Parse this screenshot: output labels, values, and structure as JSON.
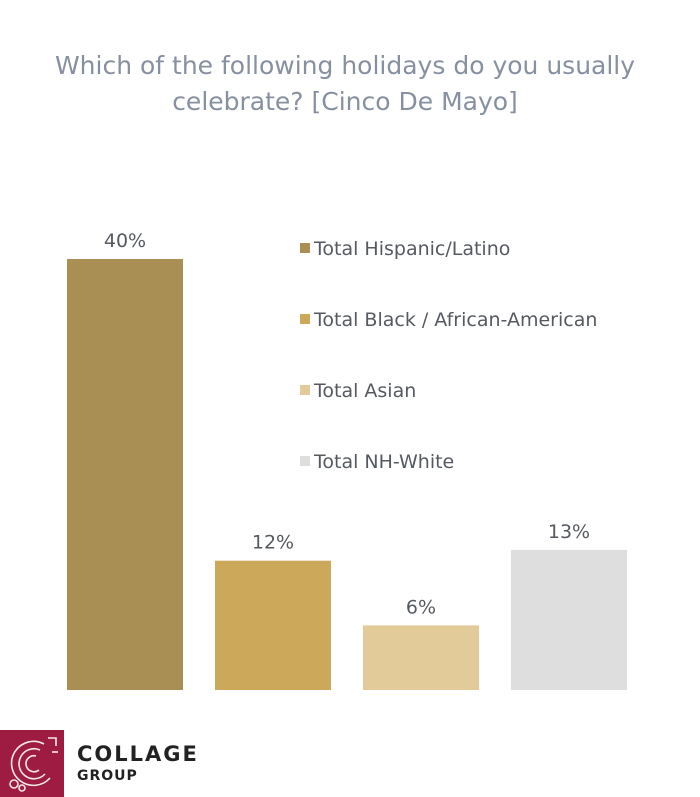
{
  "title": "Which of the following holidays do you usually celebrate? [Cinco De Mayo]",
  "chart_data": {
    "type": "bar",
    "title": "Which of the following holidays do you usually celebrate? [Cinco De Mayo]",
    "categories": [
      "Total Hispanic/Latino",
      "Total Black / African-American",
      "Total Asian",
      "Total NH-White"
    ],
    "values": [
      40,
      12,
      6,
      13
    ],
    "value_labels": [
      "40%",
      "12%",
      "6%",
      "13%"
    ],
    "colors": [
      "#a98f54",
      "#cba85a",
      "#e2cb99",
      "#dedede"
    ],
    "ylim": [
      0,
      40
    ],
    "grid": false,
    "legend_position": "top-right"
  },
  "brand": {
    "name_line1": "COLLAGE",
    "name_line2": "GROUP",
    "color": "#9e1b42"
  }
}
